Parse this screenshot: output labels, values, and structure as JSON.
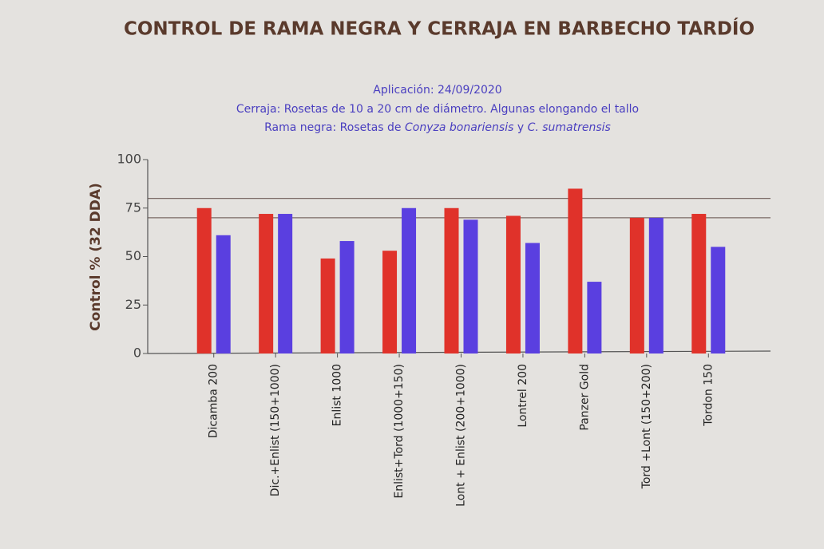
{
  "chart_data": {
    "type": "bar",
    "title": "CONTROL DE RAMA NEGRA Y CERRAJA EN BARBECHO TARDÍO",
    "subtitle": [
      "Aplicación: 24/09/2020",
      "Cerraja: Rosetas de 10 a 20 cm de diámetro. Algunas elongando el tallo",
      [
        "Rama negra: Rosetas de ",
        "Conyza bonariensis",
        " y ",
        "C. sumatrensis"
      ]
    ],
    "y_label": "Control % (32 DDA)",
    "categories": [
      "Dicamba 200",
      "Dic.+Enlist (150+1000)",
      "Enlist 1000",
      "Enlist+Tord (1000+150)",
      "Lont + Enlist (200+1000)",
      "Lontrel 200",
      "Panzer Gold",
      "Tord +Lont (150+200)",
      "Tordon 150"
    ],
    "series": [
      {
        "color": "#e0322a",
        "values": [
          75,
          72,
          49,
          53,
          75,
          71,
          85,
          70,
          72
        ]
      },
      {
        "color": "#5a3fe0",
        "values": [
          61,
          72,
          58,
          75,
          69,
          57,
          37,
          70,
          55
        ]
      }
    ],
    "reference_lines": [
      80,
      70
    ],
    "ylim": [
      0,
      100
    ],
    "yticks": [
      0,
      25,
      50,
      75,
      100
    ]
  }
}
